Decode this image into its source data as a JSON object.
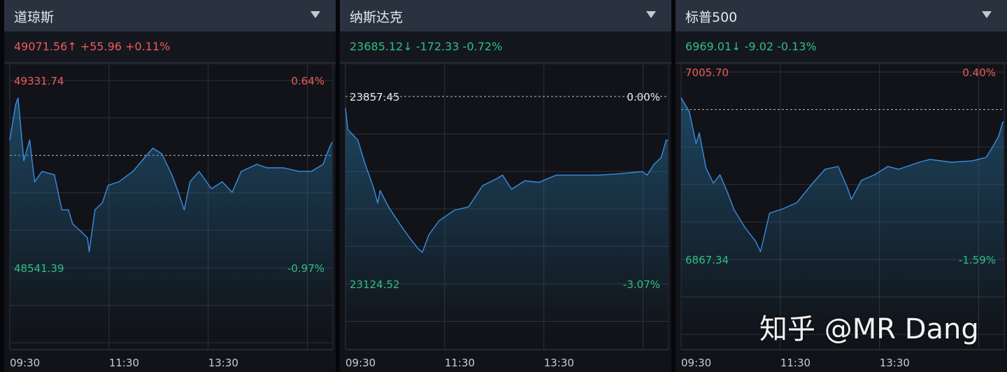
{
  "colors": {
    "up": "#ef5a5a",
    "down": "#2fbf82",
    "line": "#3a8de0",
    "grid": "#2c313b",
    "baseline": "#b8bcc4"
  },
  "time_ticks": [
    "09:30",
    "11:30",
    "13:30"
  ],
  "watermark": "知乎 @MR Dang",
  "panels": [
    {
      "title": "道琼斯",
      "quote": "49071.56↑ +55.96 +0.11%",
      "direction": "up",
      "max_label": "49331.74",
      "min_label": "48541.39",
      "max_pct": "0.64%",
      "min_pct": "-0.97%",
      "baseline_pct": ""
    },
    {
      "title": "纳斯达克",
      "quote": "23685.12↓ -172.33 -0.72%",
      "direction": "down",
      "max_label": "23857.45",
      "min_label": "23124.52",
      "max_pct": "0.00%",
      "min_pct": "-3.07%",
      "baseline_pct": ""
    },
    {
      "title": "标普500",
      "quote": "6969.01↓ -9.02 -0.13%",
      "direction": "down",
      "max_label": "7005.70",
      "min_label": "6867.34",
      "max_pct": "0.40%",
      "min_pct": "-1.59%",
      "baseline_pct": ""
    }
  ],
  "chart_data": [
    {
      "type": "area",
      "title": "道琼斯",
      "prev_close": 49015.6,
      "ylim": [
        48541.39,
        49331.74
      ],
      "xlim": [
        "09:30",
        "16:00"
      ],
      "grid": true,
      "x": [
        "09:30",
        "09:37",
        "09:40",
        "09:47",
        "09:54",
        "10:00",
        "10:09",
        "10:24",
        "10:33",
        "10:41",
        "10:46",
        "10:55",
        "11:04",
        "11:06",
        "11:13",
        "11:22",
        "11:29",
        "11:42",
        "11:59",
        "12:17",
        "12:23",
        "12:34",
        "12:46",
        "12:54",
        "13:01",
        "13:08",
        "13:19",
        "13:34",
        "13:47",
        "13:59",
        "14:10",
        "14:29",
        "14:41",
        "15:01",
        "15:20",
        "15:35",
        "15:49",
        "15:57",
        "16:00"
      ],
      "y": [
        49081,
        49229,
        49258,
        48993,
        49081,
        48904,
        48948,
        48934,
        48786,
        48786,
        48727,
        48698,
        48668,
        48609,
        48786,
        48816,
        48889,
        48904,
        48948,
        49022,
        49046,
        49022,
        48934,
        48860,
        48786,
        48904,
        48948,
        48875,
        48904,
        48860,
        48948,
        48978,
        48963,
        48963,
        48948,
        48948,
        48978,
        49052,
        49071.56
      ]
    },
    {
      "type": "area",
      "title": "纳斯达克",
      "prev_close": 23857.45,
      "ylim": [
        23124.52,
        23857.45
      ],
      "xlim": [
        "09:30",
        "16:00"
      ],
      "grid": true,
      "x": [
        "09:30",
        "09:33",
        "09:45",
        "09:54",
        "10:04",
        "10:09",
        "10:12",
        "10:22",
        "10:36",
        "10:48",
        "10:58",
        "11:03",
        "11:11",
        "11:23",
        "11:42",
        "11:59",
        "12:16",
        "12:33",
        "12:40",
        "12:51",
        "13:07",
        "13:24",
        "13:45",
        "14:10",
        "14:35",
        "15:01",
        "15:29",
        "15:35",
        "15:43",
        "15:52",
        "15:58",
        "16:00"
      ],
      "y": [
        23811,
        23728,
        23687,
        23591,
        23501,
        23440,
        23490,
        23426,
        23358,
        23303,
        23262,
        23248,
        23317,
        23371,
        23413,
        23426,
        23509,
        23536,
        23550,
        23495,
        23528,
        23522,
        23550,
        23550,
        23550,
        23555,
        23564,
        23550,
        23591,
        23619,
        23687,
        23685.12
      ]
    },
    {
      "type": "area",
      "title": "标普500",
      "prev_close": 6978.03,
      "ylim": [
        6867.34,
        7005.7
      ],
      "xlim": [
        "09:30",
        "16:00"
      ],
      "grid": true,
      "x": [
        "09:30",
        "09:40",
        "09:48",
        "09:52",
        "10:00",
        "10:09",
        "10:17",
        "10:26",
        "10:34",
        "10:47",
        "11:00",
        "11:06",
        "11:17",
        "11:34",
        "11:50",
        "12:07",
        "12:24",
        "12:40",
        "12:51",
        "12:56",
        "13:08",
        "13:24",
        "13:40",
        "13:53",
        "14:18",
        "14:31",
        "14:57",
        "15:22",
        "15:39",
        "15:47",
        "15:54",
        "15:59",
        "16:00"
      ],
      "y": [
        6986.6,
        6976.3,
        6953.0,
        6960.8,
        6935.0,
        6923.6,
        6929.8,
        6916.9,
        6904.0,
        6891.1,
        6880.8,
        6873.0,
        6901.4,
        6905.0,
        6909.2,
        6922.1,
        6933.9,
        6936.0,
        6920.5,
        6911.7,
        6925.7,
        6929.8,
        6936.0,
        6933.9,
        6939.1,
        6941.2,
        6939.1,
        6940.1,
        6942.7,
        6950.5,
        6958.2,
        6968.5,
        6969.01
      ]
    }
  ]
}
